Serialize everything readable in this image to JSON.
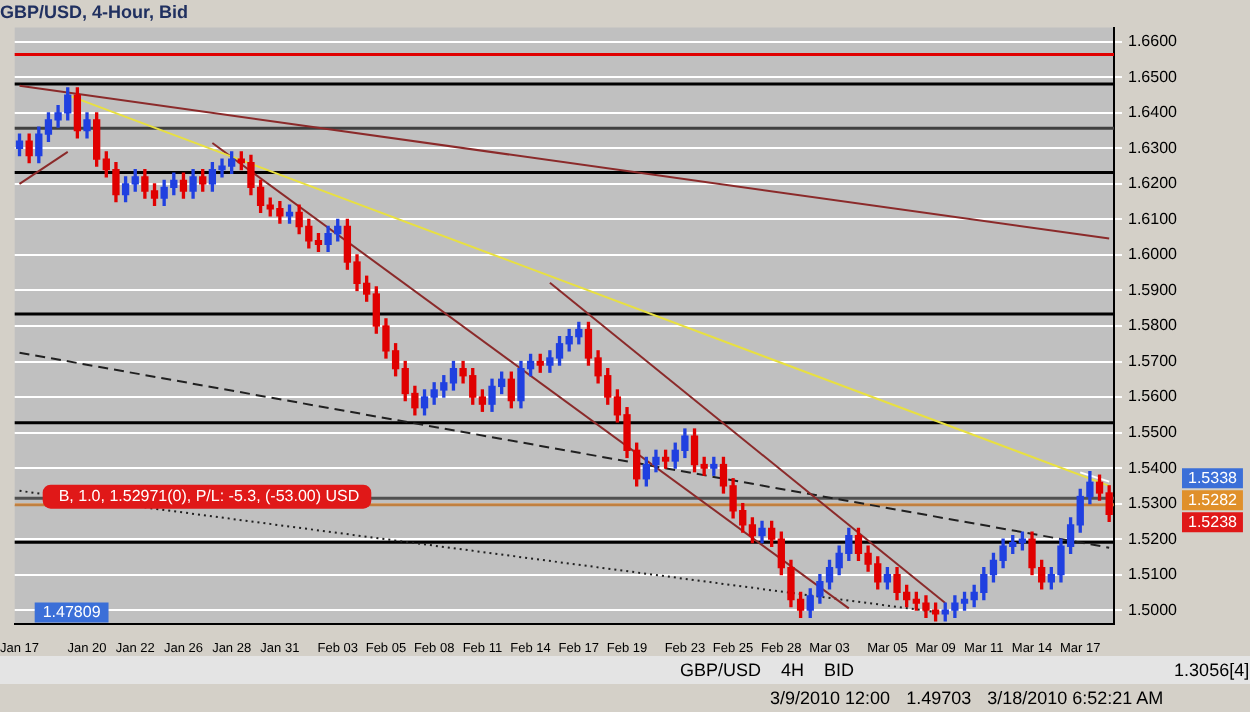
{
  "chart_data": {
    "type": "candlestick",
    "title": "GBP/USD, 4-Hour, Bid",
    "categories": [
      "Jan 17",
      null,
      null,
      null,
      null,
      null,
      null,
      "Jan 20",
      null,
      null,
      null,
      null,
      "Jan 22",
      null,
      null,
      null,
      null,
      "Jan 26",
      null,
      null,
      null,
      null,
      "Jan 28",
      null,
      null,
      null,
      null,
      "Jan 31",
      null,
      null,
      null,
      null,
      null,
      "Feb 03",
      null,
      null,
      null,
      null,
      "Feb 05",
      null,
      null,
      null,
      null,
      "Feb 08",
      null,
      null,
      null,
      null,
      "Feb 11",
      null,
      null,
      null,
      null,
      "Feb 14",
      null,
      null,
      null,
      null,
      "Feb 17",
      null,
      null,
      null,
      null,
      "Feb 19",
      null,
      null,
      null,
      null,
      null,
      "Feb 23",
      null,
      null,
      null,
      null,
      "Feb 25",
      null,
      null,
      null,
      null,
      "Feb 28",
      null,
      null,
      null,
      null,
      "Mar 03",
      null,
      null,
      null,
      null,
      null,
      "Mar 05",
      null,
      null,
      null,
      null,
      "Mar 09",
      null,
      null,
      null,
      null,
      "Mar 11",
      null,
      null,
      null,
      null,
      "Mar 14",
      null,
      null,
      null,
      null,
      "Mar 17",
      null,
      null,
      null
    ],
    "ohlc": [
      [
        1.63,
        1.634,
        1.628,
        1.632
      ],
      [
        1.632,
        1.634,
        1.626,
        1.628
      ],
      [
        1.628,
        1.636,
        1.626,
        1.634
      ],
      [
        1.634,
        1.64,
        1.632,
        1.638
      ],
      [
        1.638,
        1.642,
        1.636,
        1.64
      ],
      [
        1.64,
        1.647,
        1.638,
        1.645
      ],
      [
        1.645,
        1.647,
        1.633,
        1.635
      ],
      [
        1.635,
        1.64,
        1.633,
        1.638
      ],
      [
        1.638,
        1.64,
        1.625,
        1.627
      ],
      [
        1.627,
        1.629,
        1.622,
        1.624
      ],
      [
        1.624,
        1.626,
        1.615,
        1.617
      ],
      [
        1.617,
        1.622,
        1.615,
        1.62
      ],
      [
        1.62,
        1.624,
        1.618,
        1.622
      ],
      [
        1.622,
        1.624,
        1.616,
        1.618
      ],
      [
        1.618,
        1.62,
        1.614,
        1.616
      ],
      [
        1.616,
        1.621,
        1.614,
        1.619
      ],
      [
        1.619,
        1.623,
        1.617,
        1.621
      ],
      [
        1.621,
        1.623,
        1.616,
        1.618
      ],
      [
        1.618,
        1.624,
        1.616,
        1.622
      ],
      [
        1.622,
        1.624,
        1.618,
        1.62
      ],
      [
        1.62,
        1.626,
        1.618,
        1.624
      ],
      [
        1.624,
        1.627,
        1.622,
        1.625
      ],
      [
        1.625,
        1.629,
        1.623,
        1.627
      ],
      [
        1.627,
        1.629,
        1.624,
        1.626
      ],
      [
        1.626,
        1.628,
        1.617,
        1.619
      ],
      [
        1.619,
        1.621,
        1.612,
        1.614
      ],
      [
        1.614,
        1.616,
        1.611,
        1.613
      ],
      [
        1.613,
        1.615,
        1.609,
        1.611
      ],
      [
        1.611,
        1.614,
        1.609,
        1.612
      ],
      [
        1.612,
        1.614,
        1.606,
        1.608
      ],
      [
        1.608,
        1.61,
        1.602,
        1.604
      ],
      [
        1.604,
        1.606,
        1.601,
        1.603
      ],
      [
        1.603,
        1.608,
        1.601,
        1.606
      ],
      [
        1.606,
        1.61,
        1.604,
        1.608
      ],
      [
        1.608,
        1.61,
        1.596,
        1.598
      ],
      [
        1.598,
        1.6,
        1.59,
        1.592
      ],
      [
        1.592,
        1.594,
        1.587,
        1.589
      ],
      [
        1.589,
        1.591,
        1.578,
        1.58
      ],
      [
        1.58,
        1.582,
        1.571,
        1.573
      ],
      [
        1.573,
        1.575,
        1.566,
        1.568
      ],
      [
        1.568,
        1.57,
        1.559,
        1.561
      ],
      [
        1.561,
        1.563,
        1.555,
        1.557
      ],
      [
        1.557,
        1.562,
        1.555,
        1.56
      ],
      [
        1.56,
        1.564,
        1.558,
        1.562
      ],
      [
        1.562,
        1.566,
        1.56,
        1.564
      ],
      [
        1.564,
        1.57,
        1.562,
        1.568
      ],
      [
        1.568,
        1.57,
        1.564,
        1.566
      ],
      [
        1.566,
        1.568,
        1.558,
        1.56
      ],
      [
        1.56,
        1.562,
        1.556,
        1.558
      ],
      [
        1.558,
        1.565,
        1.556,
        1.563
      ],
      [
        1.563,
        1.567,
        1.561,
        1.565
      ],
      [
        1.565,
        1.567,
        1.557,
        1.559
      ],
      [
        1.559,
        1.57,
        1.557,
        1.568
      ],
      [
        1.568,
        1.572,
        1.566,
        1.57
      ],
      [
        1.57,
        1.572,
        1.567,
        1.569
      ],
      [
        1.569,
        1.573,
        1.567,
        1.571
      ],
      [
        1.571,
        1.577,
        1.569,
        1.575
      ],
      [
        1.575,
        1.579,
        1.573,
        1.577
      ],
      [
        1.577,
        1.581,
        1.575,
        1.579
      ],
      [
        1.579,
        1.581,
        1.569,
        1.571
      ],
      [
        1.571,
        1.573,
        1.564,
        1.566
      ],
      [
        1.566,
        1.568,
        1.558,
        1.56
      ],
      [
        1.56,
        1.562,
        1.553,
        1.555
      ],
      [
        1.555,
        1.557,
        1.543,
        1.545
      ],
      [
        1.545,
        1.547,
        1.535,
        1.537
      ],
      [
        1.537,
        1.543,
        1.535,
        1.541
      ],
      [
        1.541,
        1.545,
        1.539,
        1.543
      ],
      [
        1.543,
        1.545,
        1.54,
        1.542
      ],
      [
        1.542,
        1.547,
        1.54,
        1.545
      ],
      [
        1.545,
        1.551,
        1.543,
        1.549
      ],
      [
        1.549,
        1.551,
        1.539,
        1.541
      ],
      [
        1.541,
        1.543,
        1.538,
        1.54
      ],
      [
        1.54,
        1.543,
        1.538,
        1.541
      ],
      [
        1.541,
        1.543,
        1.533,
        1.535
      ],
      [
        1.535,
        1.537,
        1.526,
        1.528
      ],
      [
        1.528,
        1.53,
        1.522,
        1.524
      ],
      [
        1.524,
        1.526,
        1.519,
        1.521
      ],
      [
        1.521,
        1.525,
        1.519,
        1.523
      ],
      [
        1.523,
        1.525,
        1.518,
        1.52
      ],
      [
        1.52,
        1.522,
        1.51,
        1.512
      ],
      [
        1.512,
        1.514,
        1.501,
        1.503
      ],
      [
        1.503,
        1.505,
        1.498,
        1.5
      ],
      [
        1.5,
        1.506,
        1.498,
        1.504
      ],
      [
        1.504,
        1.51,
        1.502,
        1.508
      ],
      [
        1.508,
        1.514,
        1.506,
        1.512
      ],
      [
        1.512,
        1.518,
        1.51,
        1.516
      ],
      [
        1.516,
        1.523,
        1.514,
        1.521
      ],
      [
        1.521,
        1.523,
        1.514,
        1.516
      ],
      [
        1.516,
        1.518,
        1.511,
        1.513
      ],
      [
        1.513,
        1.515,
        1.506,
        1.508
      ],
      [
        1.508,
        1.512,
        1.506,
        1.51
      ],
      [
        1.51,
        1.512,
        1.503,
        1.505
      ],
      [
        1.505,
        1.507,
        1.501,
        1.503
      ],
      [
        1.503,
        1.505,
        1.5,
        1.502
      ],
      [
        1.502,
        1.504,
        1.498,
        1.5
      ],
      [
        1.5,
        1.502,
        1.497,
        1.499
      ],
      [
        1.499,
        1.502,
        1.497,
        1.5
      ],
      [
        1.5,
        1.504,
        1.498,
        1.502
      ],
      [
        1.502,
        1.505,
        1.5,
        1.503
      ],
      [
        1.503,
        1.507,
        1.501,
        1.505
      ],
      [
        1.505,
        1.512,
        1.503,
        1.51
      ],
      [
        1.51,
        1.516,
        1.508,
        1.514
      ],
      [
        1.514,
        1.52,
        1.512,
        1.518
      ],
      [
        1.518,
        1.521,
        1.516,
        1.519
      ],
      [
        1.519,
        1.522,
        1.517,
        1.52
      ],
      [
        1.52,
        1.522,
        1.51,
        1.512
      ],
      [
        1.512,
        1.514,
        1.506,
        1.508
      ],
      [
        1.508,
        1.512,
        1.506,
        1.51
      ],
      [
        1.51,
        1.52,
        1.508,
        1.518
      ],
      [
        1.518,
        1.526,
        1.516,
        1.524
      ],
      [
        1.524,
        1.534,
        1.522,
        1.532
      ],
      [
        1.532,
        1.539,
        1.53,
        1.536
      ],
      [
        1.536,
        1.538,
        1.531,
        1.533
      ],
      [
        1.533,
        1.535,
        1.525,
        1.527
      ]
    ],
    "colors": [
      "#2040e0",
      "#e00000",
      "#2040e0",
      "#2040e0",
      "#2040e0",
      "#2040e0",
      "#e00000",
      "#2040e0",
      "#e00000",
      "#e00000",
      "#e00000",
      "#2040e0",
      "#2040e0",
      "#e00000",
      "#e00000",
      "#2040e0",
      "#2040e0",
      "#e00000",
      "#2040e0",
      "#e00000",
      "#2040e0",
      "#2040e0",
      "#2040e0",
      "#e00000",
      "#e00000",
      "#e00000",
      "#e00000",
      "#e00000",
      "#2040e0",
      "#e00000",
      "#e00000",
      "#e00000",
      "#2040e0",
      "#2040e0",
      "#e00000",
      "#e00000",
      "#e00000",
      "#e00000",
      "#e00000",
      "#e00000",
      "#e00000",
      "#e00000",
      "#2040e0",
      "#2040e0",
      "#2040e0",
      "#2040e0",
      "#e00000",
      "#e00000",
      "#e00000",
      "#2040e0",
      "#2040e0",
      "#e00000",
      "#2040e0",
      "#2040e0",
      "#e00000",
      "#2040e0",
      "#2040e0",
      "#2040e0",
      "#2040e0",
      "#e00000",
      "#e00000",
      "#e00000",
      "#e00000",
      "#e00000",
      "#e00000",
      "#2040e0",
      "#2040e0",
      "#e00000",
      "#2040e0",
      "#2040e0",
      "#e00000",
      "#e00000",
      "#2040e0",
      "#e00000",
      "#e00000",
      "#e00000",
      "#e00000",
      "#2040e0",
      "#e00000",
      "#e00000",
      "#e00000",
      "#e00000",
      "#2040e0",
      "#2040e0",
      "#2040e0",
      "#2040e0",
      "#2040e0",
      "#e00000",
      "#e00000",
      "#e00000",
      "#2040e0",
      "#e00000",
      "#e00000",
      "#e00000",
      "#e00000",
      "#e00000",
      "#2040e0",
      "#2040e0",
      "#2040e0",
      "#2040e0",
      "#2040e0",
      "#2040e0",
      "#2040e0",
      "#2040e0",
      "#2040e0",
      "#e00000",
      "#e00000",
      "#2040e0",
      "#2040e0",
      "#2040e0",
      "#2040e0",
      "#2040e0",
      "#e00000",
      "#e00000"
    ],
    "series": [
      {
        "type": "line",
        "color": "#8b2a2a",
        "values": [
          1.6476,
          null,
          null,
          null,
          null,
          null,
          null,
          null,
          null,
          null,
          null,
          null,
          null,
          null,
          null,
          null,
          null,
          null,
          null,
          null,
          null,
          null,
          null,
          null,
          null,
          null,
          null,
          null,
          null,
          null,
          null,
          null,
          null,
          null,
          null,
          null,
          null,
          null,
          null,
          null,
          null,
          null,
          null,
          null,
          null,
          null,
          null,
          null,
          null,
          null,
          null,
          null,
          null,
          null,
          null,
          null,
          null,
          null,
          null,
          null,
          null,
          null,
          null,
          null,
          null,
          null,
          null,
          null,
          null,
          null,
          null,
          null,
          null,
          null,
          null,
          null,
          null,
          null,
          null,
          null,
          null,
          null,
          null,
          null,
          null,
          null,
          null,
          null,
          null,
          null,
          null,
          null,
          null,
          null,
          null,
          null,
          null,
          null,
          null,
          null,
          null,
          null,
          null,
          null,
          null,
          null,
          null,
          null,
          null,
          null,
          null,
          null,
          null,
          1.6046
        ]
      },
      {
        "type": "line",
        "color": "#e8e040",
        "values": [
          null,
          null,
          null,
          null,
          null,
          1.645,
          null,
          null,
          null,
          null,
          null,
          null,
          null,
          null,
          null,
          null,
          null,
          null,
          null,
          null,
          null,
          null,
          null,
          null,
          null,
          null,
          null,
          null,
          null,
          null,
          null,
          null,
          null,
          null,
          null,
          null,
          null,
          null,
          null,
          null,
          null,
          null,
          null,
          null,
          null,
          null,
          null,
          null,
          null,
          null,
          null,
          null,
          null,
          null,
          null,
          null,
          null,
          null,
          null,
          null,
          null,
          null,
          null,
          null,
          null,
          null,
          null,
          null,
          null,
          null,
          null,
          null,
          null,
          null,
          null,
          null,
          null,
          null,
          null,
          null,
          null,
          null,
          null,
          null,
          null,
          null,
          null,
          null,
          null,
          null,
          null,
          null,
          null,
          null,
          null,
          null,
          null,
          null,
          null,
          null,
          null,
          null,
          null,
          null,
          null,
          null,
          null,
          null,
          null,
          null,
          null,
          null,
          null,
          1.535
        ]
      },
      {
        "type": "line",
        "color": "#8b2a2a",
        "values": [
          null,
          null,
          null,
          null,
          null,
          null,
          null,
          null,
          null,
          null,
          null,
          null,
          null,
          null,
          null,
          null,
          null,
          null,
          null,
          null,
          1.6315,
          null,
          null,
          null,
          null,
          null,
          null,
          null,
          null,
          null,
          null,
          null,
          null,
          null,
          null,
          null,
          null,
          null,
          null,
          null,
          null,
          null,
          null,
          null,
          null,
          null,
          null,
          null,
          null,
          null,
          null,
          null,
          null,
          null,
          null,
          null,
          null,
          null,
          null,
          null,
          null,
          null,
          null,
          null,
          null,
          null,
          null,
          null,
          null,
          null,
          null,
          null,
          null,
          null,
          null,
          null,
          null,
          null,
          null,
          null,
          null,
          null,
          null,
          null,
          null,
          null,
          1.5005,
          null,
          null,
          null,
          null,
          null,
          null,
          null,
          null,
          null,
          null,
          null,
          null,
          null,
          null,
          null,
          null,
          null,
          null,
          null,
          null,
          null,
          null,
          null,
          null,
          null,
          null,
          null
        ]
      },
      {
        "type": "line",
        "color": "#8b2a2a",
        "values": [
          null,
          null,
          null,
          null,
          null,
          null,
          null,
          null,
          null,
          null,
          null,
          null,
          null,
          null,
          null,
          null,
          null,
          null,
          null,
          null,
          null,
          null,
          null,
          null,
          null,
          null,
          null,
          null,
          null,
          null,
          null,
          null,
          null,
          null,
          null,
          null,
          null,
          null,
          null,
          null,
          null,
          null,
          null,
          null,
          null,
          null,
          null,
          null,
          null,
          null,
          null,
          null,
          null,
          null,
          null,
          1.5922,
          null,
          null,
          null,
          null,
          null,
          null,
          null,
          null,
          null,
          null,
          null,
          null,
          null,
          null,
          null,
          null,
          null,
          null,
          null,
          null,
          null,
          null,
          null,
          null,
          null,
          null,
          null,
          null,
          null,
          null,
          null,
          null,
          null,
          null,
          null,
          null,
          null,
          null,
          null,
          null,
          1.502,
          null,
          null,
          null,
          null,
          null,
          null,
          null,
          null,
          null,
          null,
          null,
          null,
          null,
          null,
          null,
          null,
          null
        ]
      },
      {
        "type": "line",
        "color": "#202020",
        "line_style": "dashed",
        "values": [
          1.5725,
          null,
          null,
          null,
          null,
          null,
          null,
          null,
          null,
          null,
          null,
          null,
          null,
          null,
          null,
          null,
          null,
          null,
          null,
          null,
          null,
          null,
          null,
          null,
          null,
          null,
          null,
          null,
          null,
          null,
          null,
          null,
          null,
          null,
          null,
          null,
          null,
          null,
          null,
          null,
          null,
          null,
          null,
          null,
          null,
          null,
          null,
          null,
          null,
          null,
          null,
          null,
          null,
          null,
          null,
          null,
          null,
          null,
          null,
          null,
          null,
          null,
          null,
          null,
          null,
          null,
          null,
          null,
          null,
          null,
          null,
          null,
          null,
          null,
          null,
          null,
          null,
          null,
          null,
          null,
          null,
          null,
          null,
          null,
          null,
          null,
          null,
          null,
          null,
          null,
          null,
          null,
          null,
          null,
          null,
          null,
          null,
          null,
          null,
          null,
          null,
          null,
          null,
          null,
          null,
          null,
          null,
          null,
          null,
          null,
          null,
          null,
          null,
          1.5176
        ]
      },
      {
        "type": "line",
        "color": "#202020",
        "line_style": "dotted",
        "values": [
          1.5336,
          null,
          null,
          null,
          null,
          null,
          null,
          null,
          null,
          null,
          null,
          null,
          null,
          null,
          null,
          null,
          null,
          null,
          null,
          null,
          null,
          null,
          null,
          null,
          null,
          null,
          null,
          null,
          null,
          null,
          null,
          null,
          null,
          null,
          null,
          null,
          null,
          null,
          null,
          null,
          null,
          null,
          null,
          null,
          null,
          null,
          null,
          null,
          null,
          null,
          null,
          null,
          null,
          null,
          null,
          null,
          null,
          null,
          null,
          null,
          null,
          null,
          null,
          null,
          null,
          null,
          null,
          null,
          null,
          null,
          null,
          null,
          null,
          null,
          null,
          null,
          null,
          null,
          null,
          null,
          null,
          null,
          null,
          null,
          null,
          null,
          null,
          null,
          null,
          null,
          null,
          null,
          null,
          null,
          null,
          1.4995,
          null,
          null,
          null,
          null,
          null,
          null,
          null,
          null,
          null,
          null,
          null,
          null,
          null,
          null,
          null,
          null,
          null,
          null
        ]
      },
      {
        "type": "line",
        "color": "#8b2a2a",
        "values": [
          1.62,
          null,
          null,
          null,
          null,
          1.629,
          null,
          null,
          null,
          null,
          null,
          null,
          null,
          null,
          null,
          null,
          null,
          null,
          null,
          null,
          null,
          null,
          null,
          null,
          null,
          null,
          null,
          null,
          null,
          null,
          null,
          null,
          null,
          null,
          null,
          null,
          null,
          null,
          null,
          null,
          null,
          null,
          null,
          null,
          null,
          null,
          null,
          null,
          null,
          null,
          null,
          null,
          null,
          null,
          null,
          null,
          null,
          null,
          null,
          null,
          null,
          null,
          null,
          null,
          null,
          null,
          null,
          null,
          null,
          null,
          null,
          null,
          null,
          null,
          null,
          null,
          null,
          null,
          null,
          null,
          null,
          null,
          null,
          null,
          null,
          null,
          null,
          null,
          null,
          null,
          null,
          null,
          null,
          null,
          null,
          null,
          null,
          null,
          null,
          null,
          null,
          null,
          null,
          null,
          null,
          null,
          null,
          null,
          null,
          null,
          null,
          null,
          null,
          null
        ]
      },
      {
        "type": "line",
        "color": "#ffffff",
        "values": [
          null,
          null,
          null,
          null,
          null,
          null,
          null,
          null,
          null,
          null,
          null,
          null,
          null,
          null,
          null,
          null,
          null,
          null,
          null,
          null,
          null,
          null,
          null,
          null,
          null,
          null,
          null,
          null,
          null,
          null,
          null,
          null,
          null,
          null,
          null,
          null,
          null,
          null,
          null,
          null,
          null,
          null,
          null,
          null,
          null,
          null,
          null,
          null,
          null,
          null,
          null,
          null,
          null,
          null,
          null,
          null,
          null,
          null,
          null,
          null,
          null,
          null,
          null,
          null,
          null,
          null,
          null,
          null,
          null,
          null,
          null,
          null,
          null,
          null,
          null,
          null,
          null,
          null,
          null,
          null,
          null,
          null,
          null,
          null,
          null,
          null,
          null,
          null,
          null,
          null,
          null,
          null,
          null,
          null,
          null,
          null,
          null,
          null,
          null,
          null,
          null,
          null,
          null,
          null,
          null,
          null,
          null,
          null,
          null,
          null,
          1.5388,
          null,
          null,
          1.5362
        ]
      }
    ],
    "ylim": [
      1.496,
      1.664
    ],
    "yticks": [
      {
        "value": 1.5,
        "label": "1.5000"
      },
      {
        "value": 1.51,
        "label": "1.5100"
      },
      {
        "value": 1.52,
        "label": "1.5200"
      },
      {
        "value": 1.53,
        "label": "1.5300"
      },
      {
        "value": 1.54,
        "label": "1.5400"
      },
      {
        "value": 1.55,
        "label": "1.5500"
      },
      {
        "value": 1.56,
        "label": "1.5600"
      },
      {
        "value": 1.57,
        "label": "1.5700"
      },
      {
        "value": 1.58,
        "label": "1.5800"
      },
      {
        "value": 1.59,
        "label": "1.5900"
      },
      {
        "value": 1.6,
        "label": "1.6000"
      },
      {
        "value": 1.61,
        "label": "1.6100"
      },
      {
        "value": 1.62,
        "label": "1.6200"
      },
      {
        "value": 1.63,
        "label": "1.6300"
      },
      {
        "value": 1.64,
        "label": "1.6400"
      },
      {
        "value": 1.65,
        "label": "1.6500"
      },
      {
        "value": 1.66,
        "label": "1.6600"
      }
    ],
    "grid": "y",
    "ref_lines": [
      {
        "axis": "y",
        "value": 1.6564,
        "color": "#e00000"
      },
      {
        "axis": "y",
        "value": 1.6481,
        "color": "#000000"
      },
      {
        "axis": "y",
        "value": 1.6357,
        "color": "#404040"
      },
      {
        "axis": "y",
        "value": 1.6232,
        "color": "#000000"
      },
      {
        "axis": "y",
        "value": 1.5834,
        "color": "#000000"
      },
      {
        "axis": "y",
        "value": 1.5528,
        "color": "#000000"
      },
      {
        "axis": "y",
        "value": 1.5315,
        "color": "#505050"
      },
      {
        "axis": "y",
        "value": 1.52971,
        "color": "#c08040",
        "label": "B, 1.0, 1.52971(0), P/L: -5.3, (-53.00) USD"
      },
      {
        "axis": "y",
        "value": 1.5191,
        "color": "#000000"
      }
    ],
    "annotations": [
      "1.5338",
      "1.5282",
      "1.5238",
      "1.47809",
      "GBP/USD",
      "4H",
      "BID",
      "1.3056[4]",
      "3/9/2010 12:00",
      "1.49703",
      "3/18/2010 6:52:21 AM"
    ]
  }
}
